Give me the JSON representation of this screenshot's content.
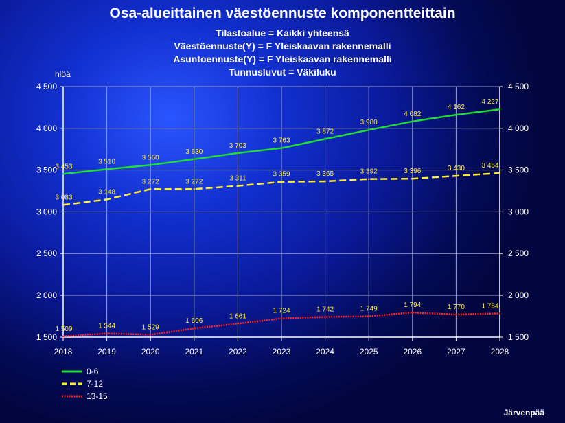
{
  "title": "Osa-alueittainen väestöennuste komponentteittain",
  "subtitles": [
    "Tilastoalue = Kaikki yhteensä",
    "Väestöennuste(Y) = F Yleiskaavan rakennemalli",
    "Asuntoennuste(Y) = F Yleiskaavan rakennemalli",
    "Tunnusluvut = Väkiluku"
  ],
  "footer": "Järvenpää",
  "chart_data": {
    "type": "line",
    "ylabel": "hlöä",
    "x": [
      2018,
      2019,
      2020,
      2021,
      2022,
      2023,
      2024,
      2025,
      2026,
      2027,
      2028
    ],
    "y_ticks": [
      1500,
      2000,
      2500,
      3000,
      3500,
      4000,
      4500
    ],
    "y_tick_labels": [
      "1 500",
      "2 000",
      "2 500",
      "3 000",
      "3 500",
      "4 000",
      "4 500"
    ],
    "ylim": [
      1500,
      4500
    ],
    "grid": true,
    "axis_scale": "broken linear, 1 500–2 000 and 2 000–4 500",
    "legend_position": "bottom-left",
    "series": [
      {
        "name": "0-6",
        "color": "#22dd33",
        "style": "solid",
        "values": [
          3453,
          3510,
          3560,
          3630,
          3703,
          3763,
          3872,
          3980,
          4082,
          4162,
          4227
        ],
        "labels": [
          "3 453",
          "3 510",
          "3 560",
          "3 630",
          "3 703",
          "3 763",
          "3 872",
          "3 980",
          "4 082",
          "4 162",
          "4 227"
        ]
      },
      {
        "name": "7-12",
        "color": "#ffee33",
        "style": "dashed",
        "values": [
          3083,
          3148,
          3272,
          3272,
          3311,
          3359,
          3365,
          3392,
          3396,
          3430,
          3464
        ],
        "labels": [
          "3 083",
          "3 148",
          "3 272",
          "3 272",
          "3 311",
          "3 359",
          "3 365",
          "3 392",
          "3 396",
          "3 430",
          "3 464"
        ]
      },
      {
        "name": "13-15",
        "color": "#ff2222",
        "style": "dotted",
        "values": [
          1509,
          1544,
          1529,
          1606,
          1661,
          1724,
          1742,
          1749,
          1794,
          1770,
          1784
        ],
        "labels": [
          "1 509",
          "1 544",
          "1 529",
          "1 606",
          "1 661",
          "1 724",
          "1 742",
          "1 749",
          "1 794",
          "1 770",
          "1 784"
        ]
      }
    ]
  }
}
